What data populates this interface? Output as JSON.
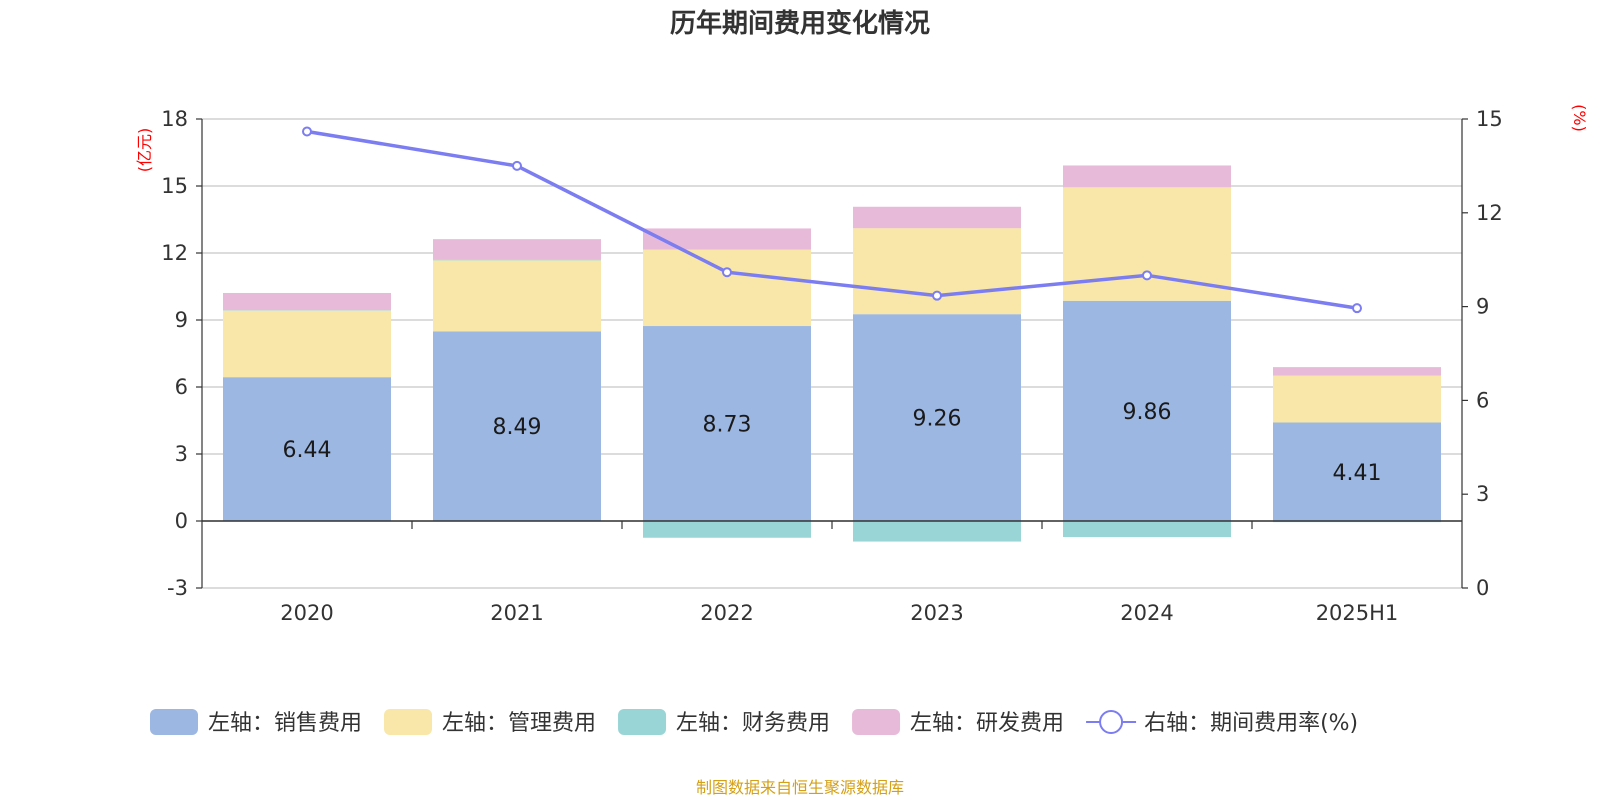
{
  "chart_data": {
    "type": "bar",
    "title": "历年期间费用变化情况",
    "categories": [
      "2020",
      "2021",
      "2022",
      "2023",
      "2024",
      "2025H1"
    ],
    "left_axis": {
      "unit": "(亿元)",
      "range": [
        -3,
        18
      ],
      "ticks": [
        "-3",
        "0",
        "3",
        "6",
        "9",
        "12",
        "15",
        "18"
      ]
    },
    "right_axis": {
      "unit": "(%)",
      "range": [
        0,
        15
      ],
      "ticks": [
        "0",
        "3",
        "6",
        "9",
        "12",
        "15"
      ]
    },
    "series": [
      {
        "name": "左轴：销售费用",
        "color": "#9cb7e1",
        "values": [
          6.44,
          8.49,
          8.73,
          9.26,
          9.86,
          4.41
        ],
        "show_labels": true
      },
      {
        "name": "左轴：管理费用",
        "color": "#f8e7a8",
        "values": [
          2.98,
          3.18,
          3.42,
          3.85,
          5.08,
          2.1
        ]
      },
      {
        "name": "左轴：财务费用",
        "color": "#99d5d6",
        "values": [
          0.02,
          0.02,
          -0.75,
          -0.92,
          -0.72,
          -0.05
        ]
      },
      {
        "name": "左轴：研发费用",
        "color": "#e8bad9",
        "values": [
          0.77,
          0.93,
          0.95,
          0.96,
          0.98,
          0.38
        ]
      },
      {
        "name": "右轴：期间费用率(%)",
        "type": "line",
        "axis": "right",
        "color": "#7b7df0",
        "values": [
          14.6,
          13.5,
          10.1,
          9.35,
          10.0,
          8.95
        ]
      }
    ],
    "grid": true,
    "legend_position": "bottom"
  },
  "source_note": "制图数据来自恒生聚源数据库"
}
